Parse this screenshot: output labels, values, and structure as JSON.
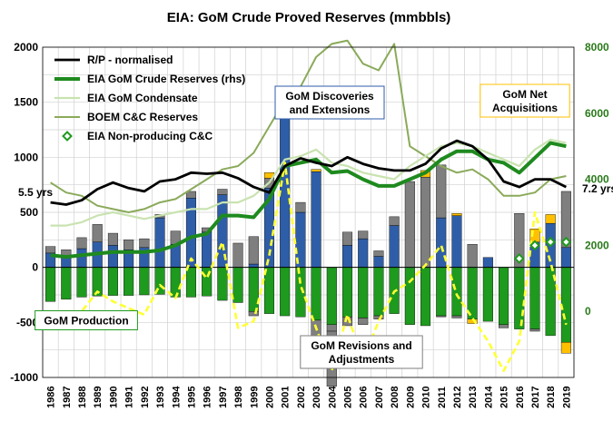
{
  "chart_data": {
    "type": "bar",
    "title": "EIA: GoM Crude Proved Reserves (mmbbls)",
    "categories": [
      "1986",
      "1987",
      "1988",
      "1989",
      "1990",
      "1991",
      "1992",
      "1993",
      "1994",
      "1995",
      "1996",
      "1997",
      "1998",
      "1999",
      "2000",
      "2001",
      "2002",
      "2003",
      "2004",
      "2005",
      "2006",
      "2007",
      "2008",
      "2009",
      "2010",
      "2011",
      "2012",
      "2013",
      "2014",
      "2015",
      "2016",
      "2017",
      "2018",
      "2019"
    ],
    "ylim": [
      -1000,
      2000
    ],
    "yticks": [
      "-1000",
      "-500",
      "0",
      "500",
      "1000",
      "1500",
      "2000"
    ],
    "y2lim": [
      -2000,
      8000
    ],
    "y2ticks": [
      "0",
      "2000",
      "4000",
      "6000",
      "8000"
    ],
    "grid": true,
    "legend_placement": "top-left",
    "colors": {
      "discoveries": "#2f5ea8",
      "revisions": "#7f7f7f",
      "acquisitions": "#ffc000",
      "production": "#1e9a1e",
      "rp": "#000000",
      "crude_reserves": "#1e8a1e",
      "condensate": "#c9e3b0",
      "boem": "#8aaa5a",
      "nonproducing": "#1e9a1e",
      "dashed": "#ffff33",
      "right_axis": "#2a7a1a",
      "grid": "#d0d0d0"
    },
    "bars": {
      "discoveries": [
        130,
        100,
        170,
        230,
        200,
        160,
        180,
        450,
        210,
        630,
        320,
        660,
        0,
        30,
        720,
        1450,
        500,
        870,
        0,
        200,
        260,
        100,
        380,
        0,
        0,
        450,
        470,
        0,
        90,
        0,
        0,
        230,
        400,
        180
      ],
      "revisions": [
        60,
        60,
        100,
        160,
        110,
        90,
        80,
        30,
        120,
        60,
        40,
        50,
        220,
        250,
        90,
        150,
        90,
        0,
        -500,
        120,
        70,
        50,
        80,
        780,
        820,
        480,
        0,
        210,
        0,
        0,
        490,
        0,
        0,
        510
      ],
      "acquisitions": [
        0,
        0,
        0,
        0,
        0,
        0,
        0,
        0,
        0,
        0,
        0,
        0,
        0,
        0,
        50,
        0,
        0,
        20,
        0,
        0,
        0,
        0,
        0,
        0,
        60,
        0,
        20,
        0,
        0,
        0,
        0,
        120,
        80,
        0
      ],
      "production": [
        -310,
        -290,
        -270,
        -260,
        -255,
        -255,
        -250,
        -245,
        -270,
        -270,
        -260,
        -300,
        -320,
        -400,
        -420,
        -440,
        -450,
        -480,
        -520,
        -450,
        -460,
        -440,
        -420,
        -520,
        -530,
        -440,
        -440,
        -470,
        -490,
        -520,
        -560,
        -560,
        -620,
        -680
      ],
      "negative_revisions": [
        0,
        0,
        0,
        0,
        0,
        0,
        0,
        0,
        0,
        0,
        0,
        0,
        0,
        -40,
        0,
        0,
        0,
        -310,
        -60,
        -80,
        -60,
        -30,
        0,
        0,
        0,
        -10,
        -20,
        0,
        0,
        -30,
        0,
        -20,
        0,
        0
      ],
      "negative_acquisitions": [
        0,
        0,
        0,
        0,
        0,
        0,
        0,
        0,
        0,
        0,
        0,
        0,
        0,
        0,
        0,
        0,
        0,
        0,
        0,
        0,
        0,
        0,
        0,
        0,
        0,
        0,
        0,
        -40,
        0,
        0,
        0,
        0,
        0,
        -100
      ]
    },
    "series": [
      {
        "name": "R/P - normalised",
        "axis": "left",
        "values": [
          590,
          570,
          610,
          710,
          770,
          720,
          690,
          780,
          800,
          860,
          850,
          860,
          810,
          730,
          680,
          920,
          990,
          950,
          920,
          1000,
          940,
          900,
          880,
          880,
          940,
          1080,
          1150,
          1100,
          980,
          780,
          730,
          800,
          800,
          730
        ]
      },
      {
        "name": "EIA GoM Crude Reserves (rhs)",
        "axis": "right",
        "values": [
          1700,
          1650,
          1700,
          1750,
          1800,
          1800,
          1800,
          1850,
          2000,
          2250,
          2350,
          2900,
          2900,
          2850,
          3400,
          4400,
          4500,
          4600,
          4200,
          4250,
          4000,
          3800,
          3800,
          4000,
          4200,
          4600,
          4850,
          4850,
          4600,
          4500,
          4200,
          4650,
          5100,
          5000
        ]
      },
      {
        "name": "EIA GoM Condensate",
        "axis": "right",
        "values": [
          2600,
          2600,
          2700,
          2900,
          3000,
          2900,
          2800,
          2900,
          3000,
          3100,
          3100,
          3300,
          3300,
          3500,
          3900,
          4600,
          4700,
          4900,
          4500,
          4400,
          4200,
          4100,
          4000,
          4400,
          4700,
          5000,
          5100,
          5000,
          4800,
          4600,
          4400,
          4900,
          5200,
          5100
        ]
      },
      {
        "name": "BOEM C&C Reserves",
        "axis": "right",
        "values": [
          3900,
          3600,
          3500,
          3200,
          3100,
          3000,
          3100,
          3300,
          3400,
          3700,
          4000,
          4300,
          4400,
          4800,
          5600,
          6400,
          6800,
          7700,
          8100,
          8200,
          7500,
          7300,
          8100,
          5000,
          4700,
          4400,
          4200,
          4300,
          4000,
          3500,
          3500,
          3600,
          4000,
          4100
        ]
      },
      {
        "name": "EIA Non-producing C&C",
        "axis": "right",
        "values": [
          null,
          null,
          null,
          null,
          null,
          null,
          null,
          null,
          null,
          null,
          null,
          null,
          null,
          null,
          null,
          null,
          null,
          null,
          null,
          null,
          null,
          null,
          null,
          null,
          null,
          null,
          null,
          null,
          null,
          null,
          1600,
          2000,
          2100,
          2100
        ]
      },
      {
        "name": "",
        "axis": "right",
        "values": [
          -400,
          -500,
          0,
          600,
          300,
          100,
          -100,
          800,
          400,
          1600,
          1000,
          2100,
          -500,
          -300,
          1700,
          4500,
          800,
          -500,
          -1800,
          -100,
          -1500,
          -300,
          600,
          900,
          1400,
          2000,
          500,
          -200,
          -900,
          -1800,
          -900,
          3000,
          1500,
          -400
        ]
      }
    ],
    "annotations": {
      "discoveries": "GoM Discoveries\nand Extensions",
      "acquisitions": "GoM Net\nAcquisitions",
      "revisions": "GoM Revisions and\nAdjustments",
      "production": "GoM Production",
      "rp_start": "5.5 yrs",
      "rp_end": "7.2 yrs"
    }
  }
}
